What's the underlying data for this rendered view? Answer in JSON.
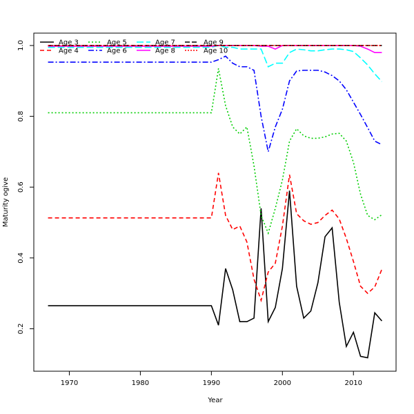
{
  "chart_data": {
    "type": "line",
    "xlabel": "Year",
    "ylabel": "Maturity ogive",
    "xlim": [
      1965,
      2016
    ],
    "ylim": [
      0.08,
      1.035
    ],
    "xticks": [
      1970,
      1980,
      1990,
      2000,
      2010
    ],
    "yticks": [
      0.2,
      0.4,
      0.6,
      0.8,
      1.0
    ],
    "ytick_labels": [
      "0.2",
      "0.4",
      "0.6",
      "0.8",
      "1.0"
    ],
    "grid": false,
    "legend_position": "top-left",
    "x": [
      1967,
      1968,
      1969,
      1970,
      1971,
      1972,
      1973,
      1974,
      1975,
      1976,
      1977,
      1978,
      1979,
      1980,
      1981,
      1982,
      1983,
      1984,
      1985,
      1986,
      1987,
      1988,
      1989,
      1990,
      1991,
      1992,
      1993,
      1994,
      1995,
      1996,
      1997,
      1998,
      1999,
      2000,
      2001,
      2002,
      2003,
      2004,
      2005,
      2006,
      2007,
      2008,
      2009,
      2010,
      2011,
      2012,
      2013,
      2014
    ],
    "series": [
      {
        "name": "Age 3",
        "color": "#000000",
        "dash": "",
        "values": [
          0.265,
          0.265,
          0.265,
          0.265,
          0.265,
          0.265,
          0.265,
          0.265,
          0.265,
          0.265,
          0.265,
          0.265,
          0.265,
          0.265,
          0.265,
          0.265,
          0.265,
          0.265,
          0.265,
          0.265,
          0.265,
          0.265,
          0.265,
          0.265,
          0.21,
          0.37,
          0.31,
          0.22,
          0.22,
          0.23,
          0.54,
          0.22,
          0.26,
          0.37,
          0.59,
          0.32,
          0.23,
          0.25,
          0.33,
          0.46,
          0.485,
          0.275,
          0.15,
          0.19,
          0.122,
          0.118,
          0.245,
          0.222
        ]
      },
      {
        "name": "Age 4",
        "color": "#ff0000",
        "dash": "6,4",
        "values": [
          0.513,
          0.513,
          0.513,
          0.513,
          0.513,
          0.513,
          0.513,
          0.513,
          0.513,
          0.513,
          0.513,
          0.513,
          0.513,
          0.513,
          0.513,
          0.513,
          0.513,
          0.513,
          0.513,
          0.513,
          0.513,
          0.513,
          0.513,
          0.513,
          0.64,
          0.52,
          0.48,
          0.49,
          0.445,
          0.34,
          0.28,
          0.36,
          0.385,
          0.49,
          0.635,
          0.525,
          0.505,
          0.495,
          0.5,
          0.52,
          0.535,
          0.51,
          0.455,
          0.39,
          0.32,
          0.3,
          0.318,
          0.368
        ]
      },
      {
        "name": "Age 5",
        "color": "#00cd00",
        "dash": "2,3",
        "values": [
          0.81,
          0.81,
          0.81,
          0.81,
          0.81,
          0.81,
          0.81,
          0.81,
          0.81,
          0.81,
          0.81,
          0.81,
          0.81,
          0.81,
          0.81,
          0.81,
          0.81,
          0.81,
          0.81,
          0.81,
          0.81,
          0.81,
          0.81,
          0.81,
          0.935,
          0.83,
          0.77,
          0.75,
          0.77,
          0.66,
          0.52,
          0.47,
          0.54,
          0.62,
          0.73,
          0.765,
          0.745,
          0.738,
          0.738,
          0.742,
          0.75,
          0.752,
          0.73,
          0.67,
          0.58,
          0.52,
          0.508,
          0.522
        ]
      },
      {
        "name": "Age 6",
        "color": "#0000ff",
        "dash": "8,3,2,3",
        "values": [
          0.953,
          0.953,
          0.953,
          0.953,
          0.953,
          0.953,
          0.953,
          0.953,
          0.953,
          0.953,
          0.953,
          0.953,
          0.953,
          0.953,
          0.953,
          0.953,
          0.953,
          0.953,
          0.953,
          0.953,
          0.953,
          0.953,
          0.953,
          0.953,
          0.96,
          0.97,
          0.95,
          0.94,
          0.94,
          0.93,
          0.8,
          0.7,
          0.77,
          0.82,
          0.9,
          0.928,
          0.93,
          0.93,
          0.93,
          0.925,
          0.915,
          0.9,
          0.875,
          0.84,
          0.805,
          0.768,
          0.73,
          0.72
        ]
      },
      {
        "name": "Age 7",
        "color": "#00ffff",
        "dash": "10,4",
        "values": [
          0.995,
          0.995,
          0.995,
          0.995,
          0.995,
          0.995,
          0.995,
          0.995,
          0.995,
          0.995,
          0.995,
          0.995,
          0.995,
          0.995,
          0.995,
          0.995,
          0.995,
          0.995,
          0.995,
          0.995,
          0.995,
          0.995,
          0.995,
          0.995,
          1.0,
          0.995,
          0.995,
          0.99,
          0.99,
          0.99,
          0.99,
          0.94,
          0.95,
          0.95,
          0.98,
          0.99,
          0.988,
          0.985,
          0.985,
          0.988,
          0.99,
          0.99,
          0.988,
          0.983,
          0.965,
          0.945,
          0.92,
          0.898
        ]
      },
      {
        "name": "Age 8",
        "color": "#ff00ff",
        "dash": "",
        "values": [
          0.998,
          0.998,
          0.998,
          0.998,
          0.998,
          0.998,
          0.998,
          0.998,
          0.998,
          0.998,
          0.998,
          0.998,
          0.998,
          0.998,
          0.998,
          0.998,
          0.998,
          0.998,
          0.998,
          0.998,
          0.998,
          0.998,
          0.998,
          0.998,
          1.0,
          1.0,
          1.0,
          1.0,
          1.0,
          1.0,
          0.998,
          0.998,
          0.99,
          1.0,
          1.0,
          1.0,
          1.0,
          1.0,
          1.0,
          1.0,
          1.0,
          1.0,
          1.0,
          1.0,
          0.998,
          0.99,
          0.98,
          0.98
        ]
      },
      {
        "name": "Age 9",
        "color": "#000000",
        "dash": "7,3",
        "values": [
          1.0,
          1.0,
          1.0,
          1.0,
          1.0,
          1.0,
          1.0,
          1.0,
          1.0,
          1.0,
          1.0,
          1.0,
          1.0,
          1.0,
          1.0,
          1.0,
          1.0,
          1.0,
          1.0,
          1.0,
          1.0,
          1.0,
          1.0,
          1.0,
          1.0,
          1.0,
          1.0,
          1.0,
          1.0,
          1.0,
          1.0,
          1.0,
          1.0,
          1.0,
          1.0,
          1.0,
          1.0,
          1.0,
          1.0,
          1.0,
          1.0,
          1.0,
          1.0,
          1.0,
          1.0,
          1.0,
          1.0,
          1.0
        ]
      },
      {
        "name": "Age 10",
        "color": "#ff0000",
        "dash": "2,2",
        "values": [
          1.0,
          1.0,
          1.0,
          1.0,
          1.0,
          1.0,
          1.0,
          1.0,
          1.0,
          1.0,
          1.0,
          1.0,
          1.0,
          1.0,
          1.0,
          1.0,
          1.0,
          1.0,
          1.0,
          1.0,
          1.0,
          1.0,
          1.0,
          1.0,
          1.0,
          1.0,
          1.0,
          1.0,
          1.0,
          1.0,
          1.0,
          1.0,
          1.0,
          1.0,
          1.0,
          1.0,
          1.0,
          1.0,
          1.0,
          1.0,
          1.0,
          1.0,
          1.0,
          1.0,
          1.0,
          1.0,
          1.0,
          1.0
        ]
      }
    ]
  }
}
